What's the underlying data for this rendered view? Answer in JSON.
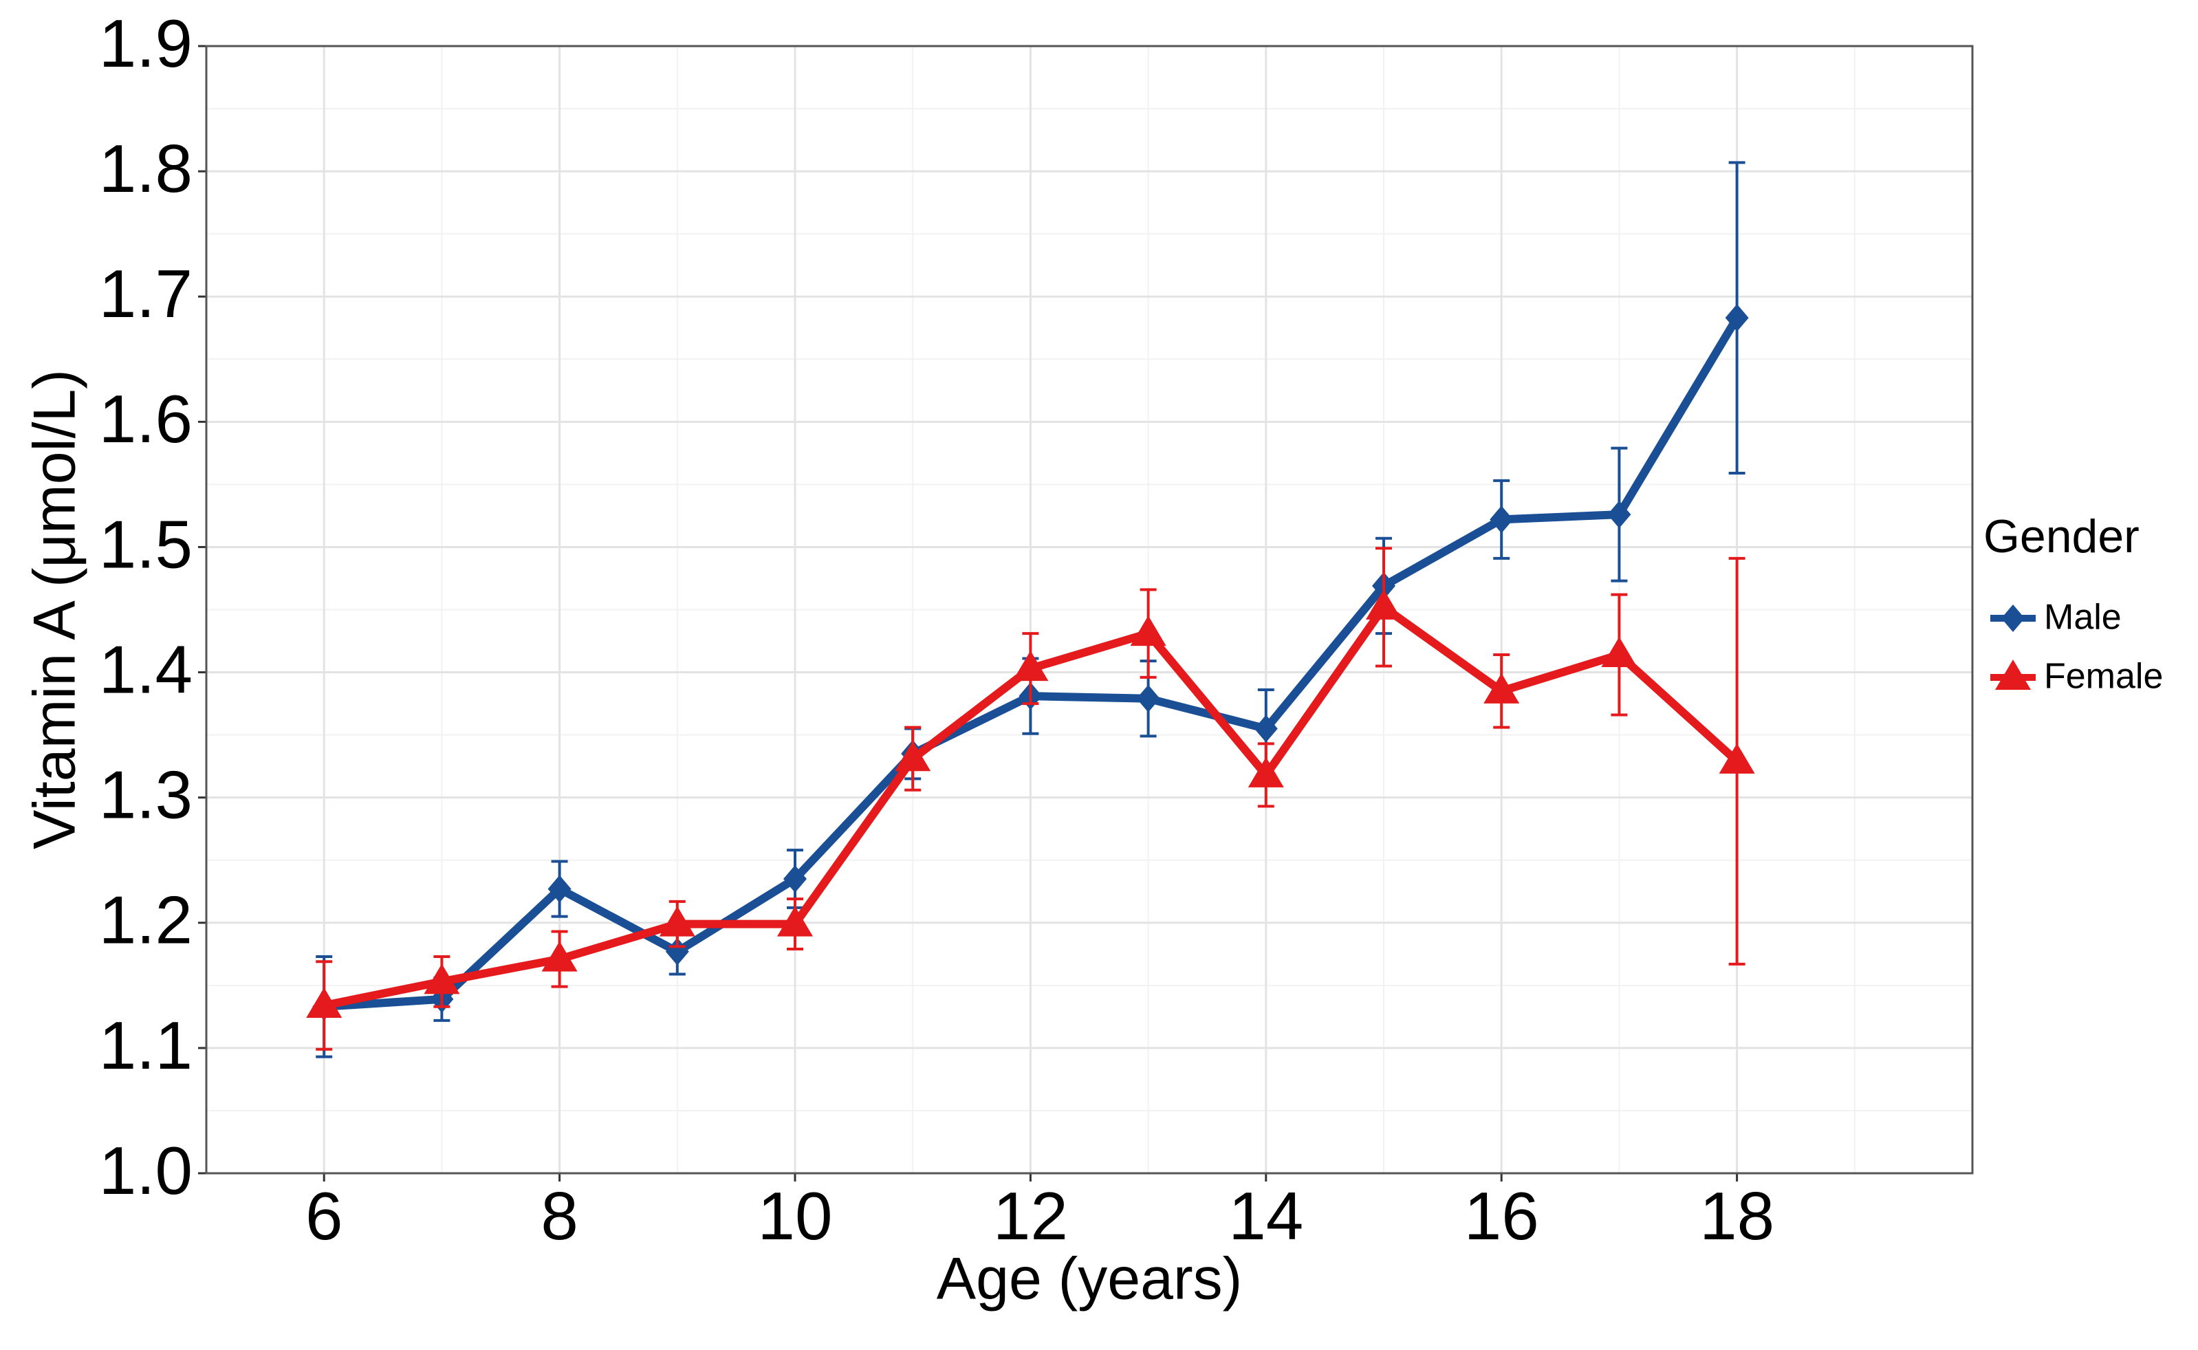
{
  "chart_data": {
    "type": "line",
    "x_label": "Age (years)",
    "y_label": "Vitamin A (μmol/L)",
    "legend_title": "Gender",
    "legend": "right",
    "grid": true,
    "x": [
      6,
      7,
      8,
      9,
      10,
      11,
      12,
      13,
      14,
      15,
      16,
      17,
      18
    ],
    "xlim": [
      5,
      20
    ],
    "xticks": [
      6,
      8,
      10,
      12,
      14,
      16,
      18
    ],
    "ylim": [
      1.0,
      1.9
    ],
    "yticks": [
      {
        "value": 1.0,
        "label": "1.0"
      },
      1.1,
      1.2,
      1.3,
      1.4,
      1.5,
      1.6,
      1.7,
      1.8,
      1.9
    ],
    "series": [
      {
        "name": "Male",
        "color": "#1a4f95",
        "marker": "diamond",
        "values": [
          1.133,
          1.139,
          1.227,
          1.177,
          1.235,
          1.335,
          1.381,
          1.379,
          1.355,
          1.469,
          1.522,
          1.526,
          1.683
        ],
        "errors": [
          0.04,
          0.017,
          0.022,
          0.018,
          0.023,
          0.02,
          0.03,
          0.03,
          0.031,
          0.038,
          0.031,
          0.053,
          0.124
        ]
      },
      {
        "name": "Female",
        "color": "#e41a1c",
        "marker": "triangle",
        "values": [
          1.134,
          1.153,
          1.171,
          1.199,
          1.199,
          1.331,
          1.403,
          1.431,
          1.318,
          1.452,
          1.385,
          1.414,
          1.329
        ],
        "errors": [
          0.035,
          0.02,
          0.022,
          0.018,
          0.02,
          0.025,
          0.028,
          0.035,
          0.025,
          0.047,
          0.029,
          0.048,
          0.162
        ]
      }
    ]
  }
}
